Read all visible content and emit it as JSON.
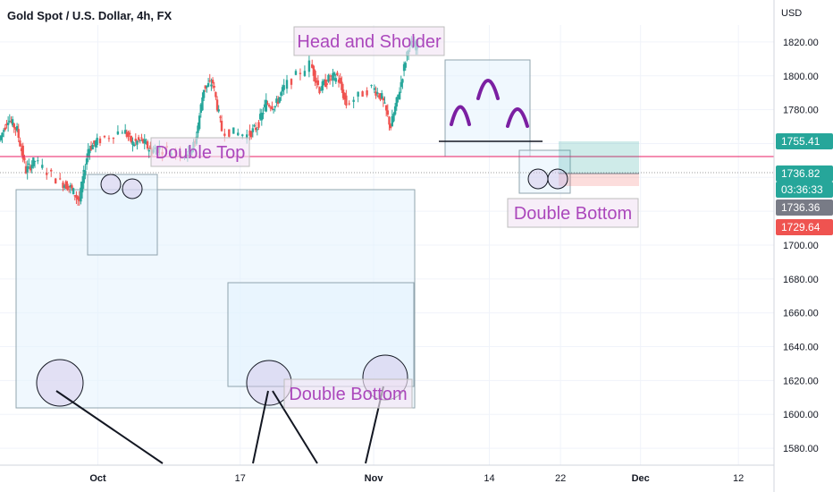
{
  "symbol": {
    "title": "Gold Spot / U.S. Dollar, 4h, FX",
    "currency": "USD"
  },
  "colors": {
    "up": "#26a69a",
    "down": "#ef5350",
    "annotation_text": "#ab47bc",
    "pattern_arc": "#7b1fa2",
    "hline": "#e91e63",
    "box_fill": "#e3f2fd",
    "box_stroke": "#90a4ae"
  },
  "chart_data": {
    "type": "candlestick",
    "ylim": [
      1570,
      1830
    ],
    "yticks": [
      1580,
      1600,
      1620,
      1640,
      1660,
      1680,
      1700,
      1720,
      1740,
      1760,
      1780,
      1800,
      1820
    ],
    "ytick_labels": [
      "1580.00",
      "1600.00",
      "1620.00",
      "1640.00",
      "1660.00",
      "1680.00",
      "1700.00",
      "1720.00",
      "1740.00",
      "1760.00",
      "1780.00",
      "1800.00",
      "1820.00"
    ],
    "xlim": [
      "2021-09-20",
      "2021-12-16"
    ],
    "xticks": [
      {
        "date": "2021-10-01",
        "label": "Oct"
      },
      {
        "date": "2021-10-17",
        "label": "17"
      },
      {
        "date": "2021-11-01",
        "label": "Nov"
      },
      {
        "date": "2021-11-14",
        "label": "14"
      },
      {
        "date": "2021-11-22",
        "label": "22"
      },
      {
        "date": "2021-12-01",
        "label": "Dec"
      },
      {
        "date": "2021-12-12",
        "label": "12"
      }
    ],
    "series": [
      {
        "date": "2021-09-20",
        "close": 1762
      },
      {
        "date": "2021-09-21",
        "close": 1775
      },
      {
        "date": "2021-09-22",
        "close": 1768
      },
      {
        "date": "2021-09-23",
        "close": 1744
      },
      {
        "date": "2021-09-24",
        "close": 1750
      },
      {
        "date": "2021-09-27",
        "close": 1737
      },
      {
        "date": "2021-09-28",
        "close": 1734
      },
      {
        "date": "2021-09-29",
        "close": 1726
      },
      {
        "date": "2021-09-30",
        "close": 1757
      },
      {
        "date": "2021-10-01",
        "close": 1761
      },
      {
        "date": "2021-10-04",
        "close": 1768
      },
      {
        "date": "2021-10-05",
        "close": 1760
      },
      {
        "date": "2021-10-06",
        "close": 1762
      },
      {
        "date": "2021-10-07",
        "close": 1756
      },
      {
        "date": "2021-10-08",
        "close": 1757
      },
      {
        "date": "2021-10-11",
        "close": 1754
      },
      {
        "date": "2021-10-12",
        "close": 1760
      },
      {
        "date": "2021-10-13",
        "close": 1793
      },
      {
        "date": "2021-10-14",
        "close": 1796
      },
      {
        "date": "2021-10-15",
        "close": 1768
      },
      {
        "date": "2021-10-18",
        "close": 1765
      },
      {
        "date": "2021-10-19",
        "close": 1770
      },
      {
        "date": "2021-10-20",
        "close": 1784
      },
      {
        "date": "2021-10-21",
        "close": 1782
      },
      {
        "date": "2021-10-22",
        "close": 1793
      },
      {
        "date": "2021-10-25",
        "close": 1807
      },
      {
        "date": "2021-10-26",
        "close": 1792
      },
      {
        "date": "2021-10-27",
        "close": 1798
      },
      {
        "date": "2021-10-28",
        "close": 1800
      },
      {
        "date": "2021-10-29",
        "close": 1783
      },
      {
        "date": "2021-11-01",
        "close": 1793
      },
      {
        "date": "2021-11-02",
        "close": 1787
      },
      {
        "date": "2021-11-03",
        "close": 1770
      },
      {
        "date": "2021-11-04",
        "close": 1792
      },
      {
        "date": "2021-11-05",
        "close": 1818
      }
    ],
    "annotations": [
      "Head and Sholder",
      "Double Top",
      "Double Bottom",
      "Double Bottom"
    ]
  },
  "price_labels": [
    {
      "text": "1755.41",
      "bg": "#26a69a",
      "fg": "#ffffff"
    },
    {
      "text": "1736.82",
      "bg": "#26a69a",
      "fg": "#ffffff"
    },
    {
      "text": "03:36:33",
      "bg": "#26a69a",
      "fg": "#ffffff"
    },
    {
      "text": "1736.36",
      "bg": "#787b86",
      "fg": "#ffffff"
    },
    {
      "text": "1729.64",
      "bg": "#ef5350",
      "fg": "#ffffff"
    }
  ]
}
